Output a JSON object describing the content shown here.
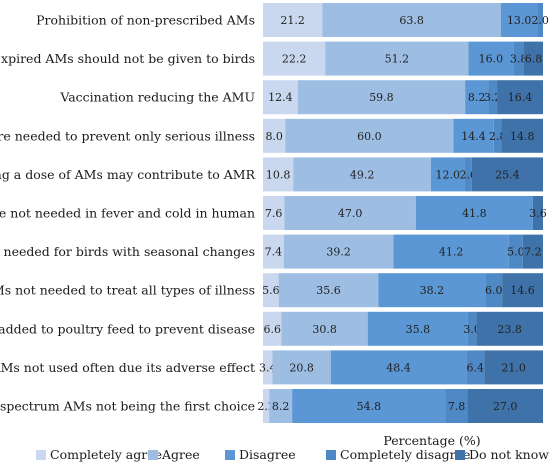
{
  "chart_data": {
    "type": "bar",
    "orientation": "horizontal",
    "stacked": true,
    "xlabel": "Percentage (%)",
    "xlim": [
      0,
      100
    ],
    "grid": false,
    "legend_position": "bottom",
    "categories": [
      "Prohibition of non-prescribed AMs",
      "Expired AMs should not be given to birds",
      "Vaccination reducing the AMU",
      "AMs are needed to prevent only serious illness",
      "Missing a dose of AMs may contribute to AMR",
      "AMs are not needed in fever and cold in human",
      "Do not needed for birds with seasonal changes",
      "AMs not needed to treat all types of illness",
      "AM added to poultry feed to prevent disease",
      "AMs not used often due its adverse effect",
      "Board spectrum AMs not being the first choice"
    ],
    "series": [
      {
        "name": "Completely agree",
        "color": "#c9d8ee",
        "values": [
          21.2,
          22.2,
          12.4,
          8.0,
          10.8,
          7.6,
          7.4,
          5.6,
          6.6,
          3.4,
          2.2
        ]
      },
      {
        "name": "Agree",
        "color": "#9dbde3",
        "values": [
          63.8,
          51.2,
          59.8,
          60.0,
          49.2,
          47.0,
          39.2,
          35.6,
          30.8,
          20.8,
          8.2
        ]
      },
      {
        "name": "Disagree",
        "color": "#5b97d4",
        "values": [
          13.0,
          16.0,
          8.2,
          14.4,
          12.0,
          41.8,
          41.2,
          38.2,
          35.8,
          48.4,
          54.8
        ]
      },
      {
        "name": "Completely disagree",
        "color": "#4e88c5",
        "values": [
          2.0,
          3.8,
          3.2,
          2.8,
          2.6,
          0,
          5.0,
          6.0,
          3.0,
          6.4,
          7.8
        ]
      },
      {
        "name": "Do not know",
        "color": "#3f72a8",
        "values": [
          0,
          6.8,
          16.4,
          14.8,
          25.4,
          3.6,
          7.2,
          14.6,
          23.8,
          21.0,
          27.0
        ]
      }
    ],
    "data_labels": [
      [
        "21.2",
        "63.8",
        "13.0",
        "2.0",
        ""
      ],
      [
        "22.2",
        "51.2",
        "16.0",
        "3.8",
        "6.8"
      ],
      [
        "12.4",
        "59.8",
        "8.2",
        "3.2",
        "16.4"
      ],
      [
        "8.0",
        "60.0",
        "14.4",
        "2.8",
        "14.8"
      ],
      [
        "10.8",
        "49.2",
        "12.0",
        "2.6",
        "25.4"
      ],
      [
        "7.6",
        "47.0",
        "41.8",
        "",
        "3.6"
      ],
      [
        "7.4",
        "39.2",
        "41.2",
        "5.0",
        "7.2"
      ],
      [
        "5.6",
        "35.6",
        "38.2",
        "6.0",
        "14.6"
      ],
      [
        "6.6",
        "30.8",
        "35.8",
        "3.0",
        "23.8"
      ],
      [
        "3.4",
        "20.8",
        "48.4",
        "6.4",
        "21.0"
      ],
      [
        "2.2",
        "8.2",
        "54.8",
        "7.8",
        "27.0"
      ]
    ]
  }
}
